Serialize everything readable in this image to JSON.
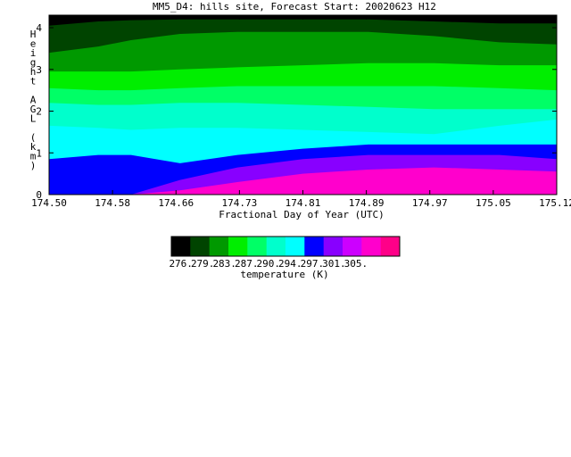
{
  "title": "MM5_D4: hills site,  Forecast Start: 20020623 H12",
  "chart_data": {
    "type": "heatmap",
    "title": "MM5_D4: hills site,  Forecast Start: 20020623 H12",
    "xlabel": "Fractional Day of Year (UTC)",
    "ylabel": "Height AGL (km)",
    "xlim": [
      174.5,
      175.12
    ],
    "ylim": [
      0,
      4.3
    ],
    "x_ticks": [
      "174.50",
      "174.58",
      "174.66",
      "174.73",
      "174.81",
      "174.89",
      "174.97",
      "175.05",
      "175.12"
    ],
    "y_ticks": [
      "0",
      "1",
      "2",
      "3",
      "4"
    ],
    "grid": false,
    "colorbar": {
      "label": "temperature (K)",
      "tick_labels": [
        "276.",
        "279.",
        "283.",
        "287.",
        "290.",
        "294.",
        "297.",
        "301.",
        "305."
      ],
      "colors": [
        "#000000",
        "#004400",
        "#009900",
        "#00ee00",
        "#00ff66",
        "#00ffcc",
        "#00ffff",
        "#0000ff",
        "#8800ff",
        "#cc00ff",
        "#ff00cc",
        "#ff0088"
      ]
    },
    "x": [
      174.5,
      174.56,
      174.6,
      174.66,
      174.73,
      174.81,
      174.89,
      174.97,
      175.05,
      175.12
    ],
    "boundaries": [
      {
        "level": "276.",
        "color": "#004400",
        "height_km": [
          4.05,
          4.15,
          4.18,
          4.2,
          4.2,
          4.2,
          4.2,
          4.15,
          4.1,
          4.1
        ]
      },
      {
        "level": "279.",
        "color": "#009900",
        "height_km": [
          3.4,
          3.55,
          3.7,
          3.85,
          3.9,
          3.9,
          3.9,
          3.8,
          3.65,
          3.6
        ]
      },
      {
        "level": "283.",
        "color": "#00ee00",
        "height_km": [
          2.95,
          2.95,
          2.95,
          3.0,
          3.05,
          3.1,
          3.15,
          3.15,
          3.1,
          3.1
        ]
      },
      {
        "level": "287.",
        "color": "#00ff66",
        "height_km": [
          2.55,
          2.5,
          2.5,
          2.55,
          2.6,
          2.6,
          2.6,
          2.6,
          2.55,
          2.5
        ]
      },
      {
        "level": "290.",
        "color": "#00ffcc",
        "height_km": [
          2.2,
          2.15,
          2.15,
          2.2,
          2.2,
          2.15,
          2.1,
          2.05,
          2.05,
          2.05
        ]
      },
      {
        "level": "294.",
        "color": "#00ffff",
        "height_km": [
          1.65,
          1.6,
          1.55,
          1.6,
          1.6,
          1.55,
          1.5,
          1.45,
          1.65,
          1.8
        ]
      },
      {
        "level": "297.",
        "color": "#0000ff",
        "height_km": [
          0.85,
          0.95,
          0.95,
          0.75,
          0.95,
          1.1,
          1.2,
          1.2,
          1.2,
          1.2
        ]
      },
      {
        "level": "301.",
        "color": "#8800ff",
        "height_km": [
          0.0,
          0.0,
          0.0,
          0.35,
          0.65,
          0.85,
          0.95,
          0.95,
          0.95,
          0.85
        ]
      },
      {
        "level": "305.",
        "color": "#ff00cc",
        "height_km": [
          0.0,
          0.0,
          0.0,
          0.1,
          0.3,
          0.5,
          0.6,
          0.65,
          0.6,
          0.55
        ]
      },
      {
        "level": "305+",
        "color": "#ff0088",
        "height_km": [
          0.0,
          0.0,
          0.0,
          0.0,
          0.0,
          0.0,
          0.0,
          0.0,
          0.0,
          0.0
        ]
      }
    ]
  }
}
